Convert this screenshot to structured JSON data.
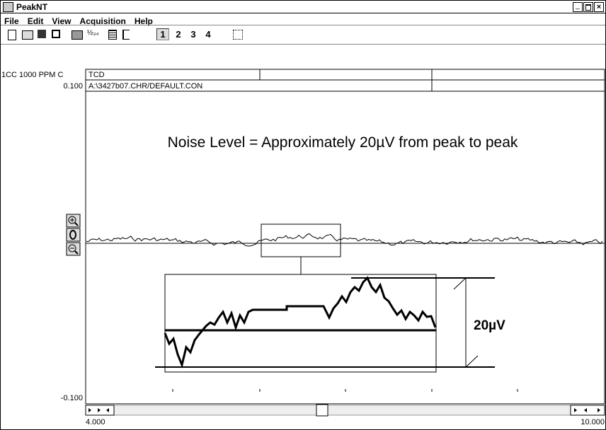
{
  "window": {
    "title": "PeakNT"
  },
  "menu": [
    "File",
    "Edit",
    "View",
    "Acquisition",
    "Help"
  ],
  "toolbar": {
    "channels": [
      "1",
      "2",
      "3",
      "4"
    ],
    "icon_label": "½₃₄"
  },
  "chart": {
    "sample_label": "1CC 1000 PPM C",
    "detector": "TCD",
    "file": "A:\\3427b07.CHR/DEFAULT.CON",
    "y_top": "0.100",
    "y_bottom": "-0.100",
    "x_start": "4.000",
    "x_end": "10.000",
    "annotation": "Noise Level = Approximately 20µV from peak to peak",
    "scale_label": "20µV"
  }
}
